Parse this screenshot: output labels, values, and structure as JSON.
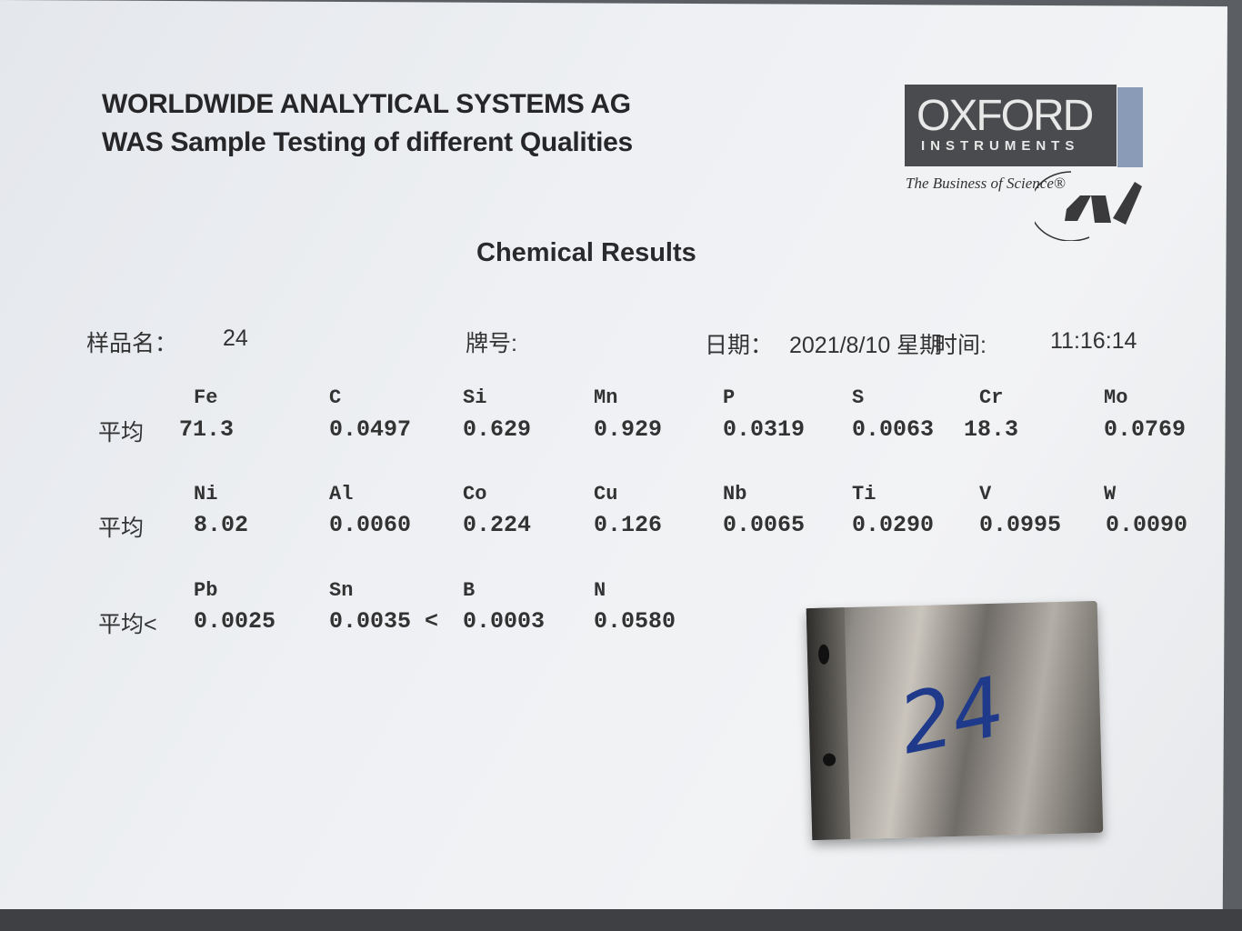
{
  "header": {
    "line1": "WORLDWIDE ANALYTICAL SYSTEMS AG",
    "line2": "WAS Sample Testing of different Qualities"
  },
  "logo": {
    "brand": "OXFORD",
    "sub": "INSTRUMENTS",
    "tagline": "The Business of Science®",
    "mark": "WAS",
    "bar_color": "#8a9bb8"
  },
  "title": "Chemical Results",
  "meta": {
    "sample_label": "样品名：",
    "sample_value": "24",
    "grade_label": "牌号:",
    "date_label": "日期：",
    "date_value": "2021/8/10 星期",
    "time_label": "时间:",
    "time_value": "11:16:14"
  },
  "rows": [
    {
      "label": "平均",
      "elements": [
        "Fe",
        "C",
        "Si",
        "Mn",
        "P",
        "S",
        "Cr",
        "Mo"
      ],
      "values": [
        "71.3",
        "0.0497",
        "0.629",
        "0.929",
        "0.0319",
        "0.0063",
        "18.3",
        "0.0769"
      ]
    },
    {
      "label": "平均",
      "elements": [
        "Ni",
        "Al",
        "Co",
        "Cu",
        "Nb",
        "Ti",
        "V",
        "W"
      ],
      "values": [
        "8.02",
        "0.0060",
        "0.224",
        "0.126",
        "0.0065",
        "0.0290",
        "0.0995",
        "0.0090"
      ]
    },
    {
      "label": "平均<",
      "elements": [
        "Pb",
        "Sn",
        "B",
        "N"
      ],
      "values": [
        "0.0025",
        "0.0035 <",
        "0.0003",
        "0.0580"
      ]
    }
  ],
  "sample_marking": "24"
}
